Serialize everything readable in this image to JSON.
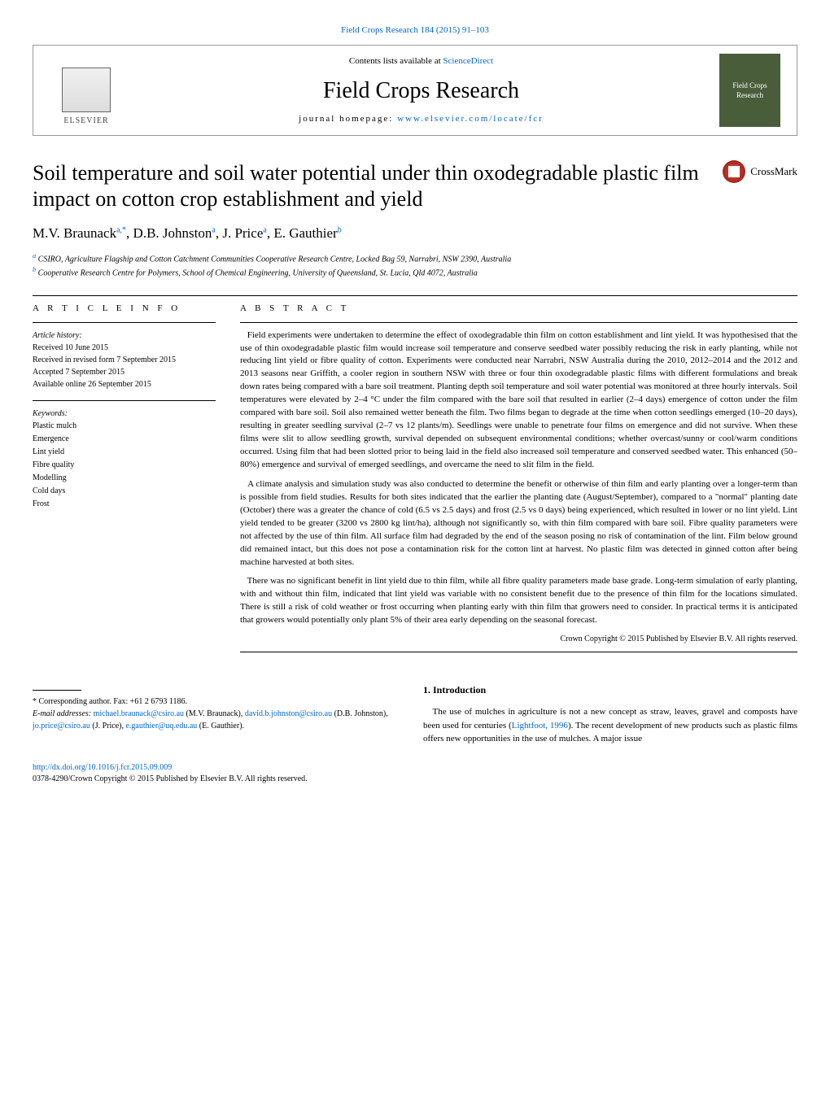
{
  "top_citation_link": "Field Crops Research 184 (2015) 91–103",
  "header": {
    "contents_text": "Contents lists available at ",
    "contents_link": "ScienceDirect",
    "journal_name": "Field Crops Research",
    "homepage_label": "journal homepage: ",
    "homepage_url": "www.elsevier.com/locate/fcr",
    "publisher": "ELSEVIER",
    "cover_label": "Field Crops Research"
  },
  "crossmark_label": "CrossMark",
  "title": "Soil temperature and soil water potential under thin oxodegradable plastic film impact on cotton crop establishment and yield",
  "authors_html": "M.V. Braunack",
  "authors": [
    {
      "name": "M.V. Braunack",
      "sup": "a,*"
    },
    {
      "name": "D.B. Johnston",
      "sup": "a"
    },
    {
      "name": "J. Price",
      "sup": "a"
    },
    {
      "name": "E. Gauthier",
      "sup": "b"
    }
  ],
  "affiliations": [
    {
      "sup": "a",
      "text": "CSIRO, Agriculture Flagship and Cotton Catchment Communities Cooperative Research Centre, Locked Bag 59, Narrabri, NSW 2390, Australia"
    },
    {
      "sup": "b",
      "text": "Cooperative Research Centre for Polymers, School of Chemical Engineering, University of Queensland, St. Lucia, Qld 4072, Australia"
    }
  ],
  "article_info": {
    "heading": "A R T I C L E   I N F O",
    "history_label": "Article history:",
    "history": [
      "Received 10 June 2015",
      "Received in revised form 7 September 2015",
      "Accepted 7 September 2015",
      "Available online 26 September 2015"
    ],
    "keywords_label": "Keywords:",
    "keywords": [
      "Plastic mulch",
      "Emergence",
      "Lint yield",
      "Fibre quality",
      "Modelling",
      "Cold days",
      "Frost"
    ]
  },
  "abstract": {
    "heading": "A B S T R A C T",
    "paragraphs": [
      "Field experiments were undertaken to determine the effect of oxodegradable thin film on cotton establishment and lint yield. It was hypothesised that the use of thin oxodegradable plastic film would increase soil temperature and conserve seedbed water possibly reducing the risk in early planting, while not reducing lint yield or fibre quality of cotton. Experiments were conducted near Narrabri, NSW Australia during the 2010, 2012–2014 and the 2012 and 2013 seasons near Griffith, a cooler region in southern NSW with three or four thin oxodegradable plastic films with different formulations and break down rates being compared with a bare soil treatment. Planting depth soil temperature and soil water potential was monitored at three hourly intervals. Soil temperatures were elevated by 2–4 °C under the film compared with the bare soil that resulted in earlier (2–4 days) emergence of cotton under the film compared with bare soil. Soil also remained wetter beneath the film. Two films began to degrade at the time when cotton seedlings emerged (10–20 days), resulting in greater seedling survival (2–7 vs 12 plants/m). Seedlings were unable to penetrate four films on emergence and did not survive. When these films were slit to allow seedling growth, survival depended on subsequent environmental conditions; whether overcast/sunny or cool/warm conditions occurred. Using film that had been slotted prior to being laid in the field also increased soil temperature and conserved seedbed water. This enhanced (50–80%) emergence and survival of emerged seedlings, and overcame the need to slit film in the field.",
      "A climate analysis and simulation study was also conducted to determine the benefit or otherwise of thin film and early planting over a longer-term than is possible from field studies. Results for both sites indicated that the earlier the planting date (August/September), compared to a \"normal\" planting date (October) there was a greater the chance of cold (6.5 vs 2.5 days) and frost (2.5 vs 0 days) being experienced, which resulted in lower or no lint yield. Lint yield tended to be greater (3200 vs 2800 kg lint/ha), although not significantly so, with thin film compared with bare soil. Fibre quality parameters were not affected by the use of thin film. All surface film had degraded by the end of the season posing no risk of contamination of the lint. Film below ground did remained intact, but this does not pose a contamination risk for the cotton lint at harvest. No plastic film was detected in ginned cotton after being machine harvested at both sites.",
      "There was no significant benefit in lint yield due to thin film, while all fibre quality parameters made base grade. Long-term simulation of early planting, with and without thin film, indicated that lint yield was variable with no consistent benefit due to the presence of thin film for the locations simulated. There is still a risk of cold weather or frost occurring when planting early with thin film that growers need to consider. In practical terms it is anticipated that growers would potentially only plant 5% of their area early depending on the seasonal forecast."
    ],
    "copyright": "Crown Copyright © 2015 Published by Elsevier B.V. All rights reserved."
  },
  "introduction": {
    "heading": "1. Introduction",
    "text_prefix": "The use of mulches in agriculture is not a new concept as straw, leaves, gravel and composts have been used for centuries (",
    "citation": "Lightfoot, 1996",
    "text_suffix": "). The recent development of new products such as plastic films offers new opportunities in the use of mulches. A major issue"
  },
  "corresponding": {
    "note": "* Corresponding author. Fax: +61 2 6793 1186.",
    "email_label": "E-mail addresses: ",
    "emails": [
      {
        "addr": "michael.braunack@csiro.au",
        "person": " (M.V. Braunack), "
      },
      {
        "addr": "david.b.johnston@csiro.au",
        "person": " (D.B. Johnston), "
      },
      {
        "addr": "jo.price@csiro.au",
        "person": " (J. Price), "
      },
      {
        "addr": "e.gauthier@uq.edu.au",
        "person": " (E. Gauthier)."
      }
    ]
  },
  "doi": {
    "url": "http://dx.doi.org/10.1016/j.fcr.2015.09.009",
    "issn_line": "0378-4290/Crown Copyright © 2015 Published by Elsevier B.V. All rights reserved."
  }
}
